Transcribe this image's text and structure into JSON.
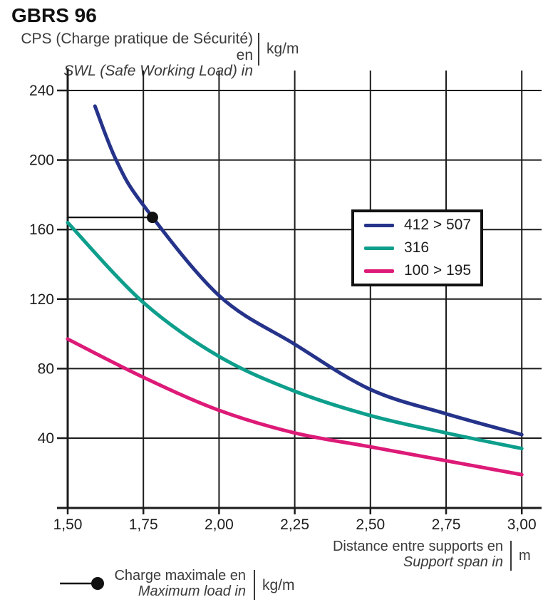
{
  "page": {
    "title": "GBRS 96"
  },
  "y_axis_header": {
    "fr": "CPS (Charge pratique de Sécurité) en",
    "en": "SWL (Safe Working Load) in",
    "unit": "kg/m"
  },
  "x_axis_footer": {
    "fr": "Distance entre supports en",
    "en": "Support span in",
    "unit": "m"
  },
  "max_load_legend": {
    "fr": "Charge maximale en",
    "en": "Maximum load in",
    "unit": "kg/m",
    "marker": "line-with-dot"
  },
  "legend": {
    "items": [
      {
        "label": "412 > 507",
        "color": "#25338a"
      },
      {
        "label": "316",
        "color": "#0d9e8c"
      },
      {
        "label": "100 > 195",
        "color": "#dd1a78"
      }
    ]
  },
  "colors": {
    "blue": "#25338a",
    "teal": "#0d9e8c",
    "pink": "#dd1a78",
    "grid": "#1c1c1c",
    "text": "#3a3a3a"
  },
  "chart_data": {
    "type": "line",
    "title": "GBRS 96",
    "xlabel": "Distance entre supports en / Support span in (m)",
    "ylabel": "CPS (Charge pratique de Sécurité) / SWL (Safe Working Load) (kg/m)",
    "xlim": [
      1.5,
      3.0
    ],
    "ylim": [
      0,
      250
    ],
    "grid": true,
    "legend_position": "upper right",
    "x_ticks": [
      {
        "value": 1.5,
        "label": "1,50"
      },
      {
        "value": 1.75,
        "label": "1,75"
      },
      {
        "value": 2.0,
        "label": "2,00"
      },
      {
        "value": 2.25,
        "label": "2,25"
      },
      {
        "value": 2.5,
        "label": "2,50"
      },
      {
        "value": 2.75,
        "label": "2,75"
      },
      {
        "value": 3.0,
        "label": "3,00"
      }
    ],
    "y_ticks": [
      {
        "value": 40,
        "label": "40"
      },
      {
        "value": 80,
        "label": "80"
      },
      {
        "value": 120,
        "label": "120"
      },
      {
        "value": 160,
        "label": "160"
      },
      {
        "value": 200,
        "label": "200"
      },
      {
        "value": 240,
        "label": "240"
      }
    ],
    "series": [
      {
        "name": "412 > 507",
        "color": "#25338a",
        "points": [
          [
            1.59,
            231
          ],
          [
            1.66,
            200
          ],
          [
            1.75,
            174
          ],
          [
            2.0,
            122
          ],
          [
            2.25,
            94
          ],
          [
            2.5,
            68
          ],
          [
            2.75,
            54
          ],
          [
            3.0,
            42
          ]
        ]
      },
      {
        "name": "316",
        "color": "#0d9e8c",
        "points": [
          [
            1.5,
            164
          ],
          [
            1.75,
            118
          ],
          [
            2.0,
            87
          ],
          [
            2.25,
            67
          ],
          [
            2.5,
            53
          ],
          [
            2.75,
            43
          ],
          [
            3.0,
            34
          ]
        ]
      },
      {
        "name": "100 > 195",
        "color": "#dd1a78",
        "points": [
          [
            1.5,
            97
          ],
          [
            1.75,
            75
          ],
          [
            2.0,
            56
          ],
          [
            2.25,
            43
          ],
          [
            2.5,
            35
          ],
          [
            2.75,
            27
          ],
          [
            3.0,
            19
          ]
        ]
      }
    ],
    "max_load_marker": {
      "x": 1.78,
      "y": 167,
      "line_from_x": 1.5
    }
  }
}
